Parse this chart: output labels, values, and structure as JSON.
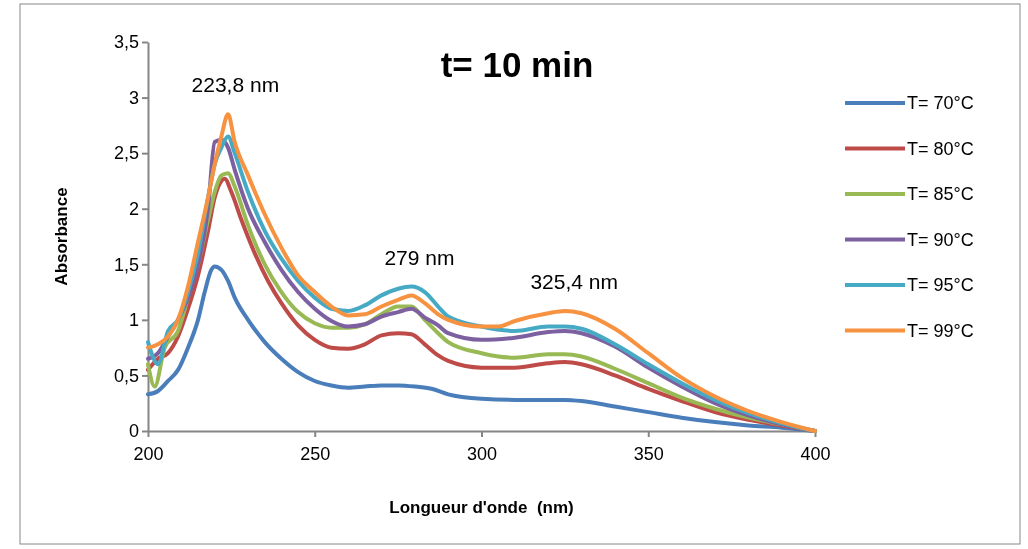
{
  "chart_data": {
    "type": "line",
    "title": "t= 10 min",
    "xlabel": "Longueur d'onde  (nm)",
    "ylabel": "Absorbance",
    "xlim": [
      200,
      400
    ],
    "xticks": [
      200,
      250,
      300,
      350,
      400
    ],
    "ylim": [
      0,
      3.5
    ],
    "yticks": [
      0,
      {
        "value": 0.5,
        "label": "0,5"
      },
      1,
      {
        "value": 1.5,
        "label": "1,5"
      },
      2,
      {
        "value": 2.5,
        "label": "2,5"
      },
      3,
      {
        "value": 3.5,
        "label": "3,5"
      }
    ],
    "legend": "right",
    "grid": false,
    "marker": "none",
    "line_style": "solid",
    "annotations": [
      {
        "text": "223,8 nm",
        "x": 223.8,
        "y": 2.85
      },
      {
        "text": "279 nm",
        "x": 279,
        "y": 1.3
      },
      {
        "text": "325,4 nm",
        "x": 325.4,
        "y": 1.08
      }
    ],
    "series": [
      {
        "name": "T= 70°C",
        "color": "#4a7ebb",
        "x": [
          200,
          203,
          206,
          209,
          212,
          215,
          217,
          219,
          220,
          222,
          224,
          226,
          230,
          235,
          240,
          245,
          250,
          255,
          260,
          265,
          270,
          275,
          280,
          285,
          290,
          300,
          310,
          320,
          325,
          330,
          340,
          350,
          360,
          370,
          380,
          390,
          400
        ],
        "values": [
          0.33,
          0.36,
          0.45,
          0.55,
          0.75,
          1.0,
          1.25,
          1.45,
          1.48,
          1.45,
          1.35,
          1.2,
          1.0,
          0.8,
          0.65,
          0.53,
          0.45,
          0.41,
          0.39,
          0.4,
          0.41,
          0.41,
          0.4,
          0.38,
          0.33,
          0.29,
          0.28,
          0.28,
          0.28,
          0.27,
          0.22,
          0.17,
          0.12,
          0.08,
          0.05,
          0.03,
          0
        ]
      },
      {
        "name": "T= 80°C",
        "color": "#be4b48",
        "x": [
          200,
          203,
          206,
          209,
          212,
          215,
          218,
          220,
          222,
          223,
          225,
          228,
          232,
          236,
          240,
          245,
          250,
          255,
          260,
          265,
          270,
          275,
          279,
          283,
          287,
          290,
          300,
          310,
          320,
          325,
          330,
          340,
          350,
          360,
          370,
          380,
          390,
          400
        ],
        "values": [
          0.55,
          0.65,
          0.7,
          0.85,
          1.1,
          1.4,
          1.8,
          2.1,
          2.25,
          2.27,
          2.15,
          1.9,
          1.6,
          1.35,
          1.15,
          0.95,
          0.82,
          0.75,
          0.74,
          0.78,
          0.86,
          0.88,
          0.87,
          0.78,
          0.68,
          0.63,
          0.57,
          0.57,
          0.61,
          0.62,
          0.6,
          0.5,
          0.38,
          0.27,
          0.17,
          0.1,
          0.05,
          0
        ]
      },
      {
        "name": "T= 85°C",
        "color": "#98b954",
        "x": [
          200,
          202,
          205,
          209,
          212,
          215,
          218,
          220,
          222,
          224,
          226,
          230,
          235,
          240,
          245,
          250,
          255,
          260,
          265,
          270,
          275,
          279,
          283,
          287,
          290,
          300,
          310,
          320,
          325,
          330,
          340,
          350,
          360,
          370,
          380,
          390,
          400
        ],
        "values": [
          0.6,
          0.4,
          0.75,
          0.9,
          1.2,
          1.5,
          1.9,
          2.15,
          2.3,
          2.32,
          2.2,
          1.85,
          1.5,
          1.25,
          1.07,
          0.97,
          0.93,
          0.93,
          0.96,
          1.05,
          1.12,
          1.12,
          1.0,
          0.88,
          0.8,
          0.7,
          0.66,
          0.69,
          0.69,
          0.67,
          0.56,
          0.43,
          0.3,
          0.2,
          0.12,
          0.06,
          0
        ]
      },
      {
        "name": "T= 90°C",
        "color": "#7d60a0",
        "x": [
          200,
          203,
          206,
          209,
          212,
          215,
          218,
          220,
          222,
          224,
          226,
          230,
          235,
          240,
          245,
          250,
          255,
          260,
          265,
          270,
          275,
          279,
          283,
          287,
          290,
          300,
          310,
          320,
          325,
          330,
          340,
          350,
          360,
          370,
          380,
          390,
          400
        ],
        "values": [
          0.65,
          0.7,
          0.85,
          1.0,
          1.2,
          1.5,
          2.0,
          2.6,
          2.62,
          2.55,
          2.35,
          2.0,
          1.7,
          1.45,
          1.25,
          1.1,
          0.99,
          0.94,
          0.96,
          1.03,
          1.07,
          1.1,
          1.02,
          0.95,
          0.88,
          0.82,
          0.84,
          0.89,
          0.9,
          0.88,
          0.76,
          0.57,
          0.4,
          0.25,
          0.14,
          0.06,
          0
        ]
      },
      {
        "name": "T= 95°C",
        "color": "#46aac5",
        "x": [
          200,
          203,
          206,
          209,
          212,
          215,
          218,
          220,
          222,
          224,
          226,
          230,
          235,
          240,
          245,
          250,
          255,
          260,
          265,
          270,
          275,
          279,
          283,
          287,
          290,
          300,
          310,
          320,
          325,
          330,
          340,
          350,
          360,
          370,
          380,
          390,
          400
        ],
        "values": [
          0.8,
          0.6,
          0.9,
          1.0,
          1.25,
          1.6,
          2.1,
          2.4,
          2.55,
          2.65,
          2.5,
          2.15,
          1.8,
          1.55,
          1.35,
          1.2,
          1.1,
          1.08,
          1.13,
          1.22,
          1.28,
          1.3,
          1.25,
          1.12,
          1.03,
          0.94,
          0.9,
          0.94,
          0.94,
          0.92,
          0.78,
          0.6,
          0.43,
          0.28,
          0.16,
          0.07,
          0
        ]
      },
      {
        "name": "T= 99°C",
        "color": "#f69240",
        "x": [
          200,
          203,
          206,
          209,
          212,
          215,
          218,
          220,
          222,
          224,
          226,
          230,
          235,
          240,
          245,
          250,
          255,
          260,
          265,
          270,
          275,
          279,
          283,
          287,
          290,
          300,
          305,
          310,
          320,
          325,
          330,
          340,
          350,
          360,
          370,
          380,
          390,
          400
        ],
        "values": [
          0.75,
          0.78,
          0.85,
          1.0,
          1.3,
          1.7,
          2.1,
          2.4,
          2.65,
          2.85,
          2.6,
          2.3,
          1.95,
          1.65,
          1.4,
          1.25,
          1.12,
          1.04,
          1.05,
          1.12,
          1.18,
          1.22,
          1.15,
          1.05,
          1.0,
          0.94,
          0.94,
          0.99,
          1.06,
          1.08,
          1.06,
          0.92,
          0.7,
          0.48,
          0.31,
          0.18,
          0.08,
          0
        ]
      }
    ]
  }
}
